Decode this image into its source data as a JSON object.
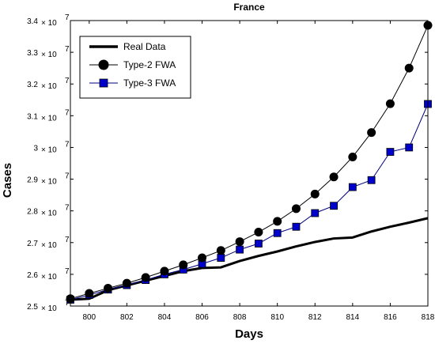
{
  "chart_data": {
    "type": "line",
    "title": "France",
    "xlabel": "Days",
    "ylabel": "Cases",
    "xlim": [
      799,
      818
    ],
    "ylim": [
      2.5,
      3.4
    ],
    "y_exponent_label": "× 10",
    "y_exponent": "7",
    "x_ticks": [
      800,
      802,
      804,
      806,
      808,
      810,
      812,
      814,
      816,
      818
    ],
    "y_ticks": [
      "2.5",
      "2.6",
      "2.7",
      "2.8",
      "2.9",
      "3",
      "3.1",
      "3.2",
      "3.3",
      "3.4"
    ],
    "grid": false,
    "legend_position": "top-left",
    "colors": {
      "real": "#000000",
      "type2": "#000000",
      "type3": "#0000cc",
      "type3_line": "#000080"
    },
    "series": [
      {
        "name": "Real Data",
        "style": "line",
        "x": [
          799,
          800,
          801,
          802,
          803,
          804,
          805,
          806,
          807,
          808,
          809,
          810,
          811,
          812,
          813,
          814,
          815,
          816,
          817,
          818
        ],
        "values": [
          2.52,
          2.523,
          2.55,
          2.565,
          2.58,
          2.595,
          2.61,
          2.62,
          2.622,
          2.642,
          2.658,
          2.672,
          2.688,
          2.702,
          2.713,
          2.716,
          2.735,
          2.75,
          2.763,
          2.777
        ]
      },
      {
        "name": "Type-2 FWA",
        "style": "circle",
        "x": [
          799,
          800,
          801,
          802,
          803,
          804,
          805,
          806,
          807,
          808,
          809,
          810,
          811,
          812,
          813,
          814,
          815,
          816,
          817,
          818
        ],
        "values": [
          2.523,
          2.54,
          2.556,
          2.572,
          2.59,
          2.61,
          2.63,
          2.652,
          2.675,
          2.703,
          2.733,
          2.767,
          2.807,
          2.853,
          2.907,
          2.97,
          3.047,
          3.138,
          3.25,
          3.385
        ]
      },
      {
        "name": "Type-3 FWA",
        "style": "square",
        "x": [
          799,
          800,
          801,
          802,
          803,
          804,
          805,
          806,
          807,
          808,
          809,
          810,
          811,
          812,
          813,
          814,
          815,
          816,
          817,
          818
        ],
        "values": [
          2.52,
          2.535,
          2.552,
          2.566,
          2.582,
          2.6,
          2.615,
          2.633,
          2.652,
          2.678,
          2.697,
          2.73,
          2.75,
          2.793,
          2.816,
          2.875,
          2.897,
          2.986,
          3.0,
          3.137
        ]
      }
    ]
  }
}
